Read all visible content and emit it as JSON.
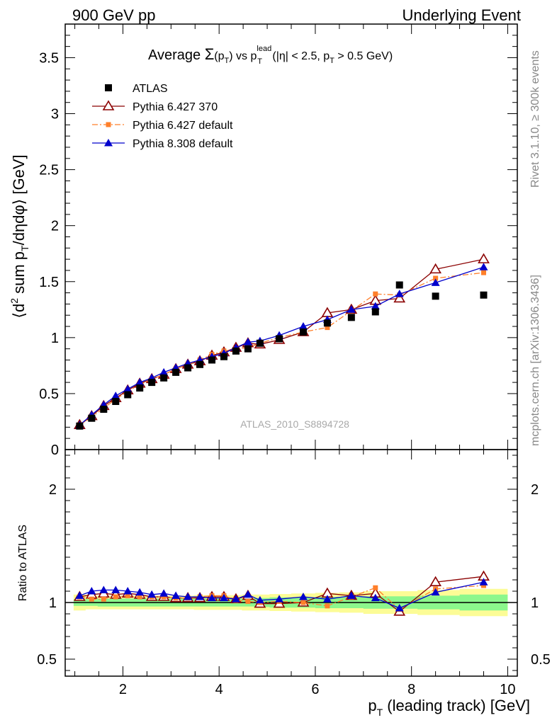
{
  "header": {
    "left": "900 GeV pp",
    "right": "Underlying Event"
  },
  "side_labels": {
    "rivet": "Rivet 3.1.10, ≥ 300k events",
    "mcplots": "mcplots.cern.ch [arXiv:1306.3436]"
  },
  "plot_title": {
    "prefix": "Average ",
    "sigma": "Σ",
    "sigma_arg": "(p",
    "sigma_arg_sub": "T",
    "sigma_arg_close": ")",
    "vs": " vs p",
    "vs_sup": "lead",
    "vs_sub": "T",
    "cond_open": " (|η| < 2.5, p",
    "cond_sub": "T",
    "cond_close": " > 0.5 GeV)"
  },
  "watermark": "ATLAS_2010_S8894728",
  "legend": [
    {
      "label": "ATLAS",
      "color": "#000000",
      "marker": "square-filled",
      "line": "none"
    },
    {
      "label": "Pythia 6.427 370",
      "color": "#8b0000",
      "marker": "triangle-open",
      "line": "solid"
    },
    {
      "label": "Pythia 6.427 default",
      "color": "#ff7f2a",
      "marker": "square-filled-small",
      "line": "dashdot"
    },
    {
      "label": "Pythia 8.308 default",
      "color": "#0000cc",
      "marker": "triangle-filled",
      "line": "solid"
    }
  ],
  "ylabel_main": {
    "open": "⟨d",
    "sup": "2",
    "mid": " sum p",
    "sub": "T",
    "close": "/dηdφ⟩ [GeV]"
  },
  "ylabel_ratio": "Ratio to ATLAS",
  "xlabel": {
    "main": "p",
    "sub": "T",
    "rest": " (leading track) [GeV]"
  },
  "chart_data": {
    "type": "scatter",
    "x": [
      1.1,
      1.35,
      1.6,
      1.85,
      2.1,
      2.35,
      2.6,
      2.85,
      3.1,
      3.35,
      3.6,
      3.85,
      4.1,
      4.35,
      4.6,
      4.85,
      5.25,
      5.75,
      6.25,
      6.75,
      7.25,
      7.75,
      8.5,
      9.5
    ],
    "xlim": [
      0.8,
      10.2
    ],
    "main": {
      "ylim": [
        0,
        3.8
      ],
      "yticks": [
        0,
        0.5,
        1,
        1.5,
        2,
        2.5,
        3,
        3.5
      ],
      "series": [
        {
          "name": "ATLAS",
          "values": [
            0.21,
            0.28,
            0.36,
            0.43,
            0.49,
            0.55,
            0.6,
            0.64,
            0.69,
            0.73,
            0.76,
            0.8,
            0.83,
            0.88,
            0.9,
            0.95,
            0.99,
            1.05,
            1.13,
            1.18,
            1.23,
            1.47,
            1.37,
            1.38
          ]
        },
        {
          "name": "Pythia 6.427 370",
          "values": [
            0.22,
            0.3,
            0.39,
            0.46,
            0.53,
            0.59,
            0.63,
            0.67,
            0.72,
            0.76,
            0.79,
            0.84,
            0.87,
            0.91,
            0.95,
            0.94,
            0.98,
            1.05,
            1.22,
            1.25,
            1.33,
            1.35,
            1.61,
            1.7
          ]
        },
        {
          "name": "Pythia 6.427 default",
          "values": [
            0.22,
            0.29,
            0.37,
            0.45,
            0.52,
            0.58,
            0.63,
            0.67,
            0.72,
            0.76,
            0.8,
            0.85,
            0.88,
            0.9,
            0.91,
            0.95,
            1.0,
            1.05,
            1.09,
            1.24,
            1.39,
            1.38,
            1.53,
            1.58
          ]
        },
        {
          "name": "Pythia 8.308 default",
          "values": [
            0.22,
            0.31,
            0.4,
            0.48,
            0.54,
            0.6,
            0.64,
            0.69,
            0.73,
            0.77,
            0.8,
            0.83,
            0.86,
            0.91,
            0.96,
            0.97,
            1.02,
            1.1,
            1.16,
            1.25,
            1.28,
            1.39,
            1.49,
            1.63
          ]
        }
      ]
    },
    "ratio": {
      "ylim": [
        0.35,
        2.35
      ],
      "yticks": [
        0.5,
        1,
        2
      ],
      "bands": {
        "green_half_width": [
          0.03,
          0.03,
          0.035,
          0.035,
          0.035,
          0.035,
          0.035,
          0.035,
          0.035,
          0.035,
          0.035,
          0.035,
          0.035,
          0.035,
          0.035,
          0.04,
          0.045,
          0.045,
          0.05,
          0.05,
          0.055,
          0.055,
          0.06,
          0.07
        ],
        "yellow_half_width": [
          0.07,
          0.06,
          0.06,
          0.06,
          0.06,
          0.06,
          0.06,
          0.06,
          0.06,
          0.06,
          0.065,
          0.065,
          0.065,
          0.065,
          0.07,
          0.07,
          0.075,
          0.08,
          0.085,
          0.09,
          0.1,
          0.1,
          0.11,
          0.12
        ],
        "green_color": "#8cf78c",
        "yellow_color": "#fcfc96"
      },
      "series": [
        {
          "name": "Pythia 6.427 370",
          "values": [
            1.05,
            1.07,
            1.08,
            1.07,
            1.08,
            1.07,
            1.05,
            1.05,
            1.04,
            1.04,
            1.04,
            1.05,
            1.05,
            1.03,
            1.06,
            0.99,
            0.99,
            1.0,
            1.08,
            1.06,
            1.08,
            0.92,
            1.18,
            1.23
          ]
        },
        {
          "name": "Pythia 6.427 default",
          "values": [
            1.05,
            1.03,
            1.03,
            1.05,
            1.06,
            1.05,
            1.05,
            1.05,
            1.04,
            1.04,
            1.05,
            1.06,
            1.06,
            1.02,
            1.01,
            1.0,
            1.01,
            1.0,
            0.97,
            1.05,
            1.13,
            0.94,
            1.12,
            1.15
          ]
        },
        {
          "name": "Pythia 8.308 default",
          "values": [
            1.06,
            1.1,
            1.11,
            1.11,
            1.1,
            1.09,
            1.07,
            1.08,
            1.06,
            1.05,
            1.05,
            1.04,
            1.04,
            1.03,
            1.07,
            1.02,
            1.03,
            1.05,
            1.03,
            1.06,
            1.04,
            0.95,
            1.09,
            1.18
          ]
        }
      ]
    },
    "xticks": [
      2,
      4,
      6,
      8,
      10
    ]
  }
}
